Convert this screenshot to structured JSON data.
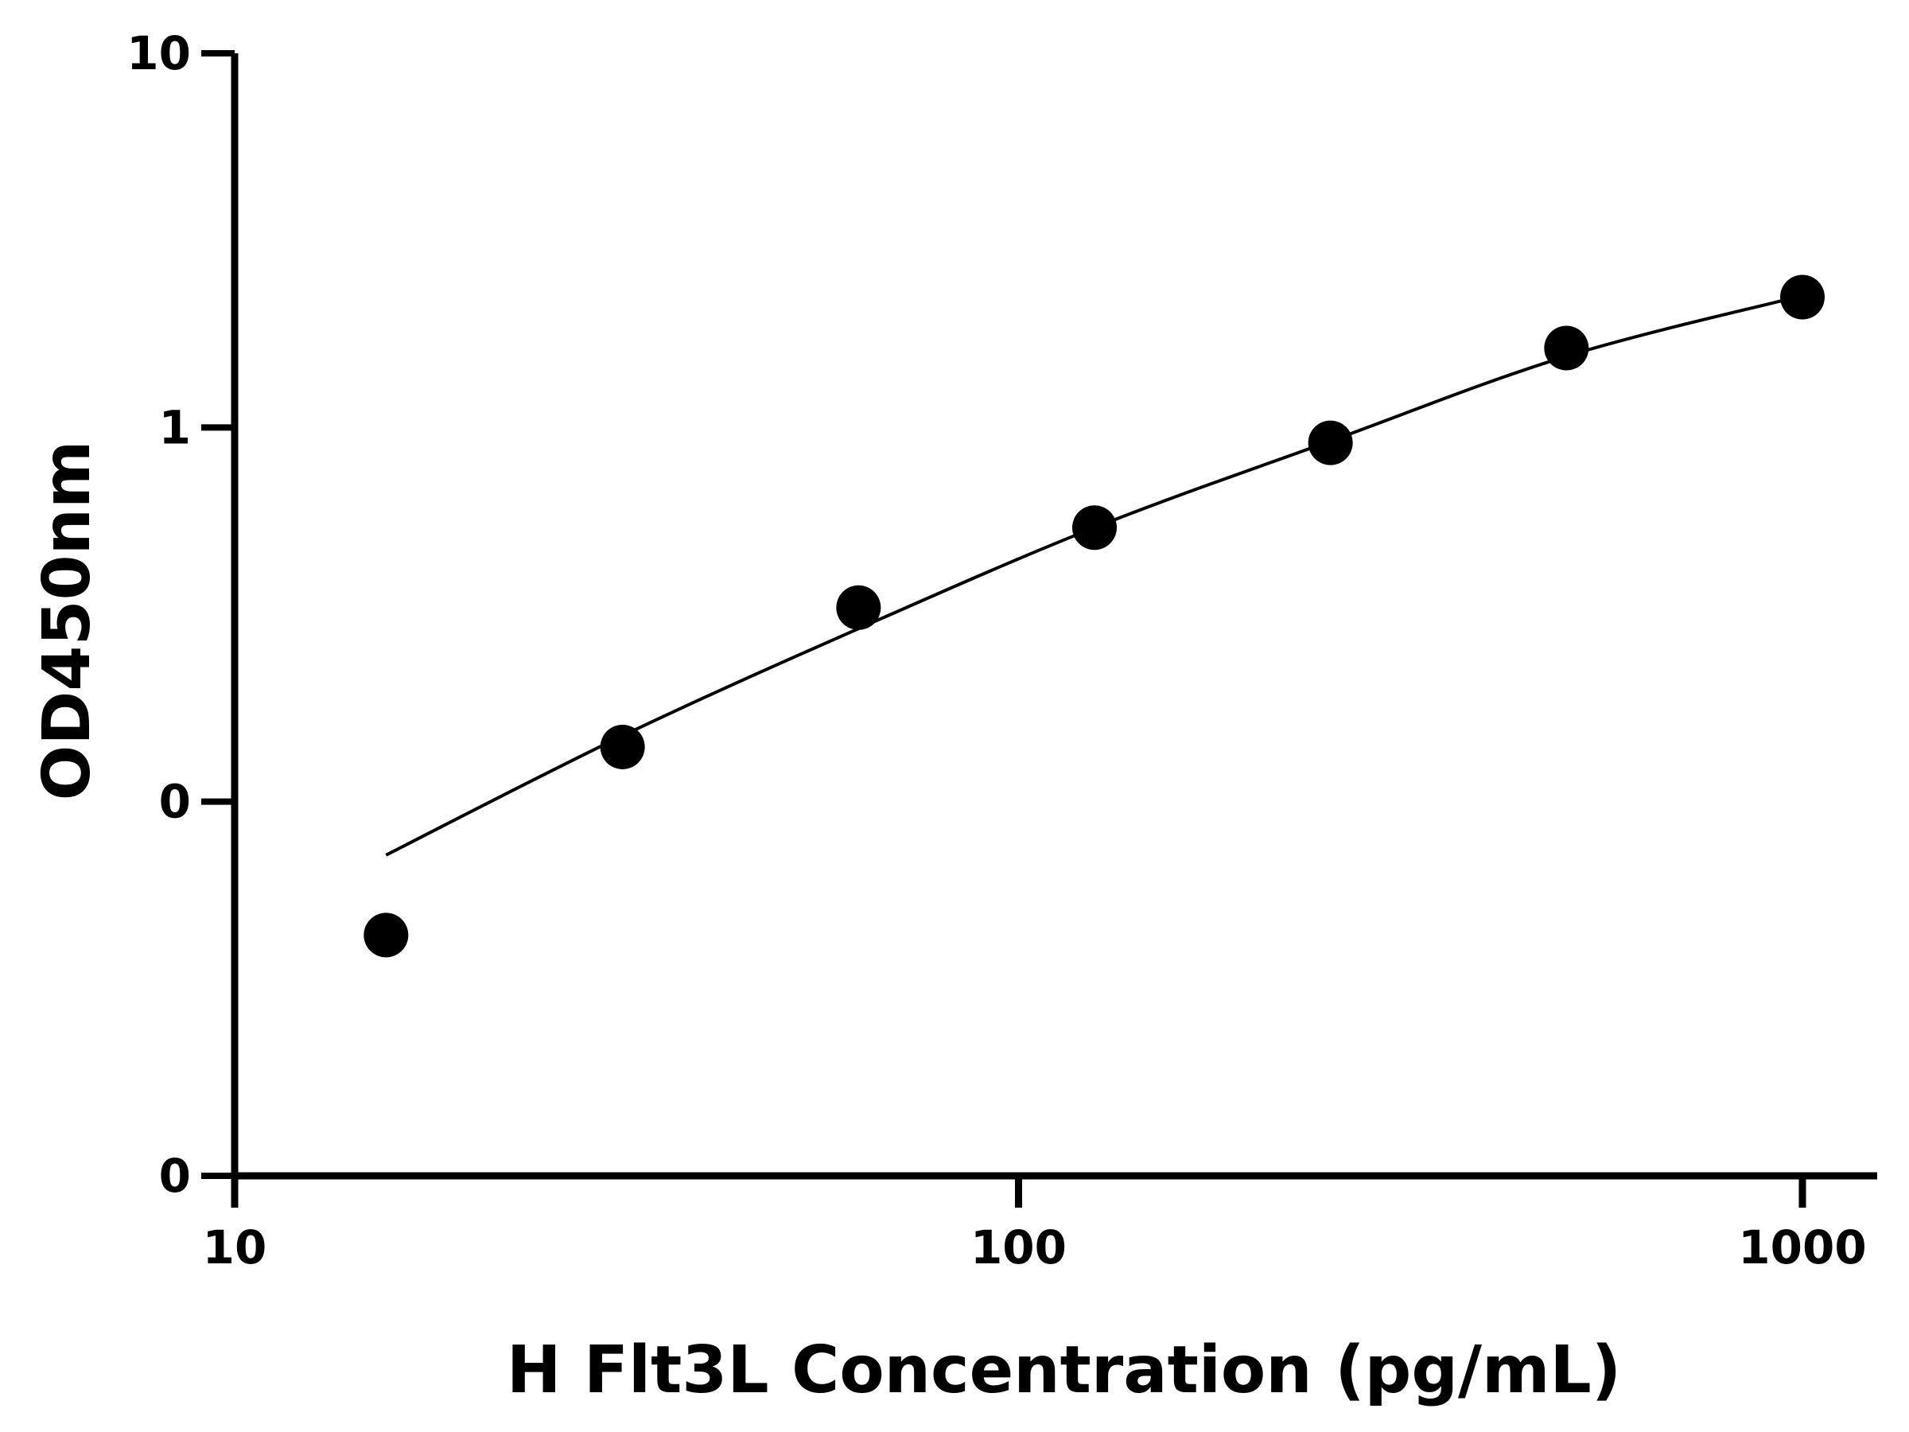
{
  "chart_data": {
    "type": "scatter",
    "title": "",
    "xlabel": "H Flt3L Concentration (pg/mL)",
    "ylabel": "OD450nm",
    "x_scale": "log",
    "y_scale": "log",
    "xlim": [
      10,
      1000
    ],
    "x_ticks": [
      {
        "value": 10,
        "label": "10"
      },
      {
        "value": 100,
        "label": "100"
      },
      {
        "value": 1000,
        "label": "1000"
      }
    ],
    "y_ticks": [
      {
        "value": 0.01,
        "label": "0"
      },
      {
        "value": 0.1,
        "label": "0"
      },
      {
        "value": 1,
        "label": "1"
      },
      {
        "value": 10,
        "label": "10"
      }
    ],
    "ylim": [
      0.01,
      10
    ],
    "series": [
      {
        "x": [
          15.6,
          31.25,
          62.5,
          125,
          250,
          500,
          1000
        ],
        "y": [
          0.044,
          0.14,
          0.33,
          0.54,
          0.91,
          1.63,
          2.23
        ]
      }
    ],
    "fit_curve": {
      "x": [
        15.6,
        31.25,
        62.5,
        125,
        250,
        500,
        1000
      ],
      "y": [
        0.072,
        0.15,
        0.29,
        0.54,
        0.92,
        1.55,
        2.25
      ]
    },
    "grid": false,
    "legend": "none"
  }
}
